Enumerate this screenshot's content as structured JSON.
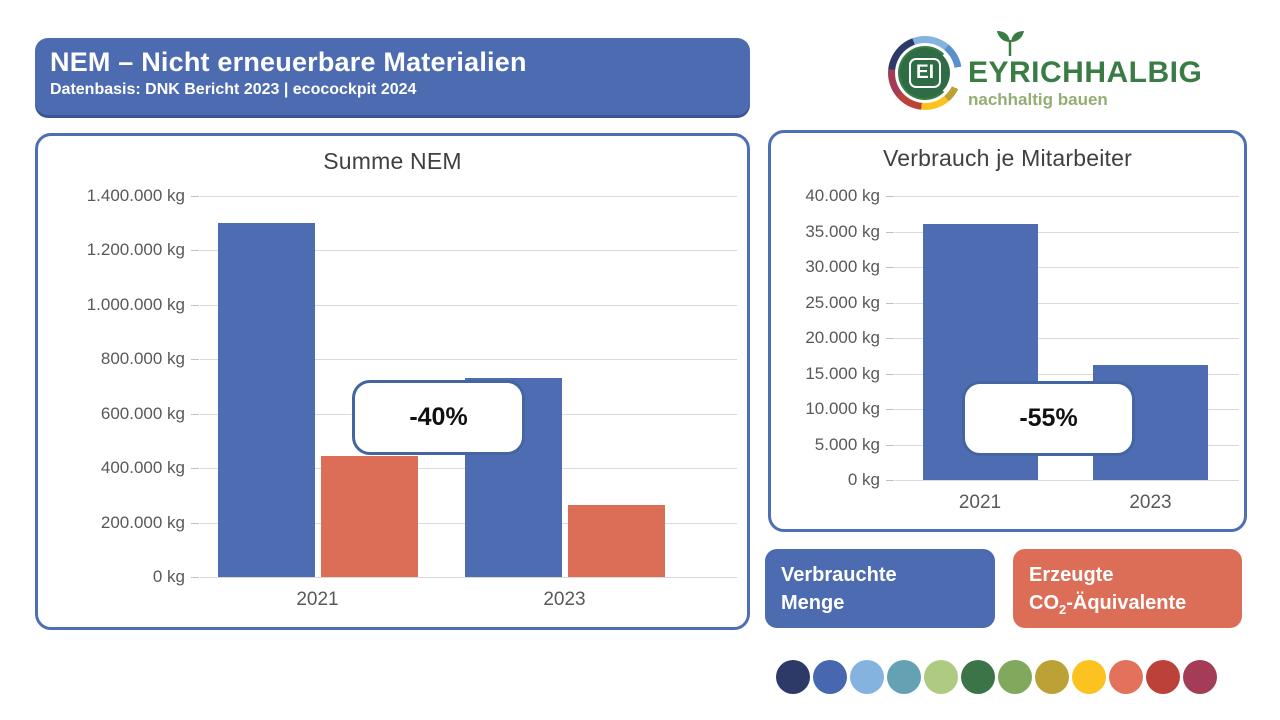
{
  "header": {
    "title": "NEM – Nicht erneuerbare Materialien",
    "subtitle": "Datenbasis: DNK Bericht 2023 | ecocockpit 2024"
  },
  "logo": {
    "name": "EYRICHHALBIG",
    "tagline": "nachhaltig bauen",
    "monogram": "EI"
  },
  "chart_data": [
    {
      "type": "bar",
      "title": "Summe NEM",
      "categories": [
        "2021",
        "2023"
      ],
      "series": [
        {
          "name": "Verbrauchte Menge",
          "color": "#4E6CB1",
          "values": [
            1300000,
            730000
          ]
        },
        {
          "name": "Erzeugte CO2-Äquivalente",
          "color": "#DC6E57",
          "values": [
            445000,
            265000
          ]
        }
      ],
      "annotation": "-40%",
      "ylim": [
        0,
        1400000
      ],
      "ytick_step": 200000,
      "yticks_top_to_bottom": [
        "1.400.000 kg",
        "1.200.000 kg",
        "1.000.000 kg",
        "800.000 kg",
        "600.000 kg",
        "400.000 kg",
        "200.000 kg",
        "0 kg"
      ],
      "grid": true,
      "unit": "kg"
    },
    {
      "type": "bar",
      "title": "Verbrauch je Mitarbeiter",
      "categories": [
        "2021",
        "2023"
      ],
      "series": [
        {
          "name": "Verbrauchte Menge",
          "color": "#4E6CB1",
          "values": [
            36000,
            16200
          ]
        }
      ],
      "annotation": "-55%",
      "ylim": [
        0,
        40000
      ],
      "ytick_step": 5000,
      "yticks_top_to_bottom": [
        "40.000 kg",
        "35.000 kg",
        "30.000 kg",
        "25.000 kg",
        "20.000 kg",
        "15.000 kg",
        "10.000 kg",
        "5.000 kg",
        "0 kg"
      ],
      "grid": true,
      "unit": "kg"
    }
  ],
  "legend": [
    {
      "line1": "Verbrauchte",
      "line2": "Menge",
      "color": "#4C6BB0"
    },
    {
      "line1": "Erzeugte",
      "line2_prefix": "CO",
      "line2_sub": "2",
      "line2_suffix": "-Äquivalente",
      "color": "#DC6E57"
    }
  ],
  "palette_dots": [
    "#2d3a67",
    "#4767b0",
    "#85b3df",
    "#64a1b2",
    "#aecb81",
    "#3b7447",
    "#80a95d",
    "#bca136",
    "#fcc220",
    "#e2725b",
    "#bc4138",
    "#a43c55"
  ]
}
